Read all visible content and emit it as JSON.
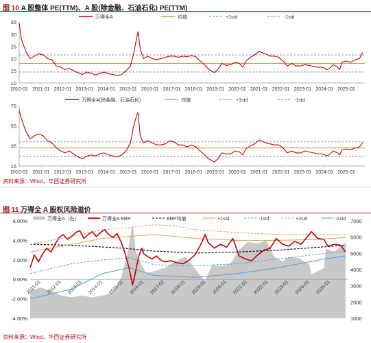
{
  "figure10": {
    "number": "图 10",
    "title": "A 股整体 PE(TTM)、A 股(除金融、石油石化) PE(TTM)"
  },
  "figure11": {
    "number": "图 11",
    "title": "万得全 A 股权风险溢价"
  },
  "source1": "资料来源：Wind，华西证券研究所",
  "source2": "资料来源：Wind，华西证券研究所",
  "colors": {
    "main": "#c00000",
    "mean": "#d4a25a",
    "std": "#7f7f7f",
    "area": "#c8c8c8",
    "dark": "#000000",
    "blue": "#5b9bd5",
    "accent": "#a4161a"
  },
  "chart_data": [
    {
      "type": "line",
      "title": "",
      "legend": [
        "万得全A",
        "均值",
        "+1std",
        "-1std"
      ],
      "x_ticks": [
        "2010-01",
        "2011-01",
        "2012-01",
        "2013-01",
        "2014-01",
        "2015-01",
        "2016-01",
        "2017-01",
        "2018-01",
        "2019-01",
        "2020-01",
        "2021-01",
        "2022-01",
        "2023-01",
        "2024-01",
        "2025-01"
      ],
      "ylim": [
        10,
        35
      ],
      "y_ticks": [
        10,
        15,
        20,
        25,
        30,
        35
      ],
      "mean": 18.0,
      "plus1std": 21.5,
      "minus1std": 14.5,
      "series": [
        {
          "name": "万得全A",
          "x": [
            2010.0,
            2010.1,
            2010.3,
            2010.5,
            2010.7,
            2010.9,
            2011.1,
            2011.3,
            2011.5,
            2011.7,
            2011.9,
            2012.1,
            2012.3,
            2012.5,
            2012.7,
            2012.9,
            2013.1,
            2013.3,
            2013.5,
            2013.7,
            2013.9,
            2014.1,
            2014.3,
            2014.5,
            2014.7,
            2014.9,
            2015.1,
            2015.25,
            2015.4,
            2015.45,
            2015.55,
            2015.7,
            2015.9,
            2016.1,
            2016.3,
            2016.5,
            2016.7,
            2016.9,
            2017.1,
            2017.3,
            2017.5,
            2017.7,
            2017.9,
            2018.1,
            2018.3,
            2018.5,
            2018.7,
            2018.95,
            2019.1,
            2019.3,
            2019.5,
            2019.7,
            2019.9,
            2020.1,
            2020.25,
            2020.4,
            2020.6,
            2020.8,
            2021.0,
            2021.1,
            2021.3,
            2021.5,
            2021.7,
            2021.9,
            2022.1,
            2022.3,
            2022.5,
            2022.7,
            2022.9,
            2023.1,
            2023.3,
            2023.5,
            2023.7,
            2023.9,
            2024.1,
            2024.2,
            2024.4,
            2024.6,
            2024.7,
            2024.8,
            2025.0,
            2025.2,
            2025.4,
            2025.6,
            2025.75
          ],
          "values": [
            34.5,
            28,
            23,
            20,
            21,
            22,
            21.5,
            20,
            19.5,
            17,
            16.5,
            15.5,
            16,
            15,
            14.2,
            13.5,
            14.5,
            14,
            13.3,
            14,
            14.5,
            13.8,
            13.5,
            13,
            13.5,
            15,
            17,
            22,
            29,
            31,
            24,
            20,
            21,
            20,
            19.5,
            20,
            20.5,
            21,
            21,
            20.5,
            21,
            20.8,
            21.2,
            20.8,
            19,
            17.5,
            15.5,
            14.3,
            15.5,
            18,
            17.2,
            17.5,
            18.5,
            18,
            16.5,
            19,
            20.5,
            21.5,
            23,
            22.5,
            22,
            21,
            21,
            20.5,
            19,
            17,
            18,
            17,
            17,
            17.5,
            17.2,
            16.8,
            16.5,
            16.5,
            15.5,
            15.8,
            17.5,
            16.5,
            15.5,
            18.5,
            19,
            18.5,
            19.5,
            20,
            22.5
          ]
        }
      ]
    },
    {
      "type": "line",
      "title": "",
      "legend": [
        "万得全A(除金融、石油石化)",
        "均值",
        "+1std",
        "-1std"
      ],
      "x_ticks": [
        "2010-01",
        "2011-01",
        "2012-01",
        "2013-01",
        "2014-01",
        "2015-01",
        "2016-01",
        "2017-01",
        "2018-01",
        "2019-01",
        "2020-01",
        "2021-01",
        "2022-01",
        "2023-01",
        "2024-01",
        "2025-01"
      ],
      "ylim": [
        15,
        75
      ],
      "y_ticks": [
        15,
        35,
        55,
        75
      ],
      "mean": 33.0,
      "plus1std": 39.0,
      "minus1std": 24.5,
      "series": [
        {
          "name": "万得全A(除金融、石油石化)",
          "x": [
            2010.0,
            2010.1,
            2010.3,
            2010.5,
            2010.7,
            2010.9,
            2011.1,
            2011.3,
            2011.5,
            2011.7,
            2011.9,
            2012.1,
            2012.3,
            2012.5,
            2012.7,
            2012.9,
            2013.1,
            2013.3,
            2013.5,
            2013.7,
            2013.9,
            2014.1,
            2014.3,
            2014.5,
            2014.7,
            2014.9,
            2015.1,
            2015.25,
            2015.4,
            2015.45,
            2015.55,
            2015.7,
            2015.9,
            2016.1,
            2016.3,
            2016.5,
            2016.7,
            2016.9,
            2017.1,
            2017.3,
            2017.5,
            2017.7,
            2017.9,
            2018.1,
            2018.3,
            2018.5,
            2018.7,
            2018.95,
            2019.1,
            2019.3,
            2019.5,
            2019.7,
            2019.9,
            2020.1,
            2020.25,
            2020.4,
            2020.6,
            2020.8,
            2021.0,
            2021.1,
            2021.3,
            2021.5,
            2021.7,
            2021.9,
            2022.1,
            2022.3,
            2022.5,
            2022.7,
            2022.9,
            2023.1,
            2023.3,
            2023.5,
            2023.7,
            2023.9,
            2024.1,
            2024.2,
            2024.4,
            2024.6,
            2024.7,
            2024.8,
            2025.0,
            2025.2,
            2025.4,
            2025.6,
            2025.75
          ],
          "values": [
            70,
            62,
            50,
            42,
            45,
            47,
            45,
            40,
            38,
            33,
            30,
            28,
            30,
            27,
            24,
            22,
            25,
            26,
            25,
            27,
            28,
            26,
            25,
            24,
            26,
            30,
            38,
            55,
            66,
            68,
            45,
            38,
            40,
            38,
            36,
            36,
            37,
            40,
            39,
            36,
            36,
            34,
            36,
            34,
            30,
            26,
            22,
            19,
            22,
            28,
            27,
            27,
            30,
            29,
            26,
            32,
            35,
            37,
            41,
            40,
            38,
            37,
            36,
            36,
            33,
            28,
            30,
            28,
            28,
            30,
            29,
            28,
            27,
            27,
            25,
            26,
            30,
            28,
            26,
            31,
            32,
            31,
            33,
            34,
            38
          ]
        }
      ]
    },
    {
      "type": "line",
      "title": "",
      "legend": [
        "万得全A（右）",
        "万得全A ERP",
        "ERP均值",
        "+1std",
        "-1std",
        "+2std",
        "-2std"
      ],
      "x_ticks": [
        "2011-01",
        "2012-01",
        "2013-01",
        "2014-01",
        "2015-01",
        "2016-01",
        "2017-01",
        "2018-01",
        "2019-01",
        "2020-01",
        "2021-01",
        "2022-01",
        "2023-01",
        "2024-01",
        "2025-01"
      ],
      "y_left": {
        "ylim": [
          -4,
          6
        ],
        "ticks": [
          "-4.00%",
          "-2.00%",
          "0.00%",
          "2.00%",
          "4.00%",
          "6.00%"
        ]
      },
      "y_right": {
        "ylim": [
          1000,
          7000
        ],
        "ticks": [
          "1000",
          "2000",
          "3000",
          "4000",
          "5000",
          "6000",
          "7000"
        ]
      },
      "series": [
        {
          "name": "万得全A（右）",
          "axis": "right",
          "x": [
            2010.5,
            2011.0,
            2011.5,
            2012.0,
            2012.5,
            2013.0,
            2013.5,
            2014.0,
            2014.5,
            2014.9,
            2015.2,
            2015.45,
            2015.6,
            2015.8,
            2016.1,
            2016.5,
            2017.0,
            2017.5,
            2018.0,
            2018.5,
            2018.95,
            2019.3,
            2019.8,
            2020.2,
            2020.6,
            2021.0,
            2021.5,
            2021.9,
            2022.3,
            2022.7,
            2023.0,
            2023.5,
            2024.0,
            2024.1,
            2024.7,
            2024.8,
            2025.2,
            2025.75
          ],
          "values": [
            2700,
            2900,
            2700,
            2400,
            2300,
            2400,
            2300,
            2400,
            2600,
            3500,
            5000,
            6800,
            5200,
            4500,
            3800,
            3900,
            4100,
            4500,
            4800,
            4000,
            3300,
            4300,
            4200,
            4400,
            5200,
            5700,
            5600,
            5800,
            4800,
            4500,
            4800,
            4700,
            4300,
            3700,
            4100,
            5300,
            5100,
            5700
          ]
        },
        {
          "name": "万得全A ERP",
          "axis": "left",
          "x": [
            2010.5,
            2010.7,
            2010.9,
            2011.1,
            2011.3,
            2011.5,
            2011.7,
            2011.9,
            2012.1,
            2012.3,
            2012.5,
            2012.7,
            2012.9,
            2013.1,
            2013.3,
            2013.5,
            2013.7,
            2013.9,
            2014.1,
            2014.3,
            2014.5,
            2014.7,
            2014.9,
            2015.1,
            2015.3,
            2015.45,
            2015.6,
            2015.75,
            2015.9,
            2016.0,
            2016.2,
            2016.4,
            2016.6,
            2016.8,
            2017.0,
            2017.3,
            2017.6,
            2017.9,
            2018.2,
            2018.5,
            2018.8,
            2018.95,
            2019.1,
            2019.4,
            2019.7,
            2020.0,
            2020.3,
            2020.6,
            2020.9,
            2021.2,
            2021.5,
            2021.8,
            2022.1,
            2022.4,
            2022.7,
            2023.0,
            2023.3,
            2023.6,
            2023.9,
            2024.1,
            2024.4,
            2024.7,
            2024.9,
            2025.2,
            2025.5,
            2025.75
          ],
          "values": [
            1.2,
            2.5,
            1.8,
            2.6,
            3.2,
            2.8,
            3.6,
            4.3,
            4.6,
            4.1,
            4.4,
            4.8,
            5.0,
            4.2,
            4.6,
            4.9,
            4.4,
            4.8,
            5.1,
            4.6,
            4.3,
            4.7,
            3.8,
            2.6,
            1.0,
            -0.6,
            0.8,
            2.4,
            3.2,
            2.6,
            2.3,
            2.1,
            2.4,
            2.0,
            1.8,
            1.9,
            1.7,
            1.6,
            2.0,
            2.6,
            3.8,
            4.6,
            3.8,
            3.2,
            3.6,
            3.3,
            4.2,
            2.4,
            2.1,
            1.9,
            2.5,
            3.0,
            3.2,
            4.2,
            3.6,
            3.4,
            3.9,
            3.6,
            4.4,
            4.9,
            4.2,
            4.1,
            3.4,
            3.6,
            3.5,
            2.8
          ]
        },
        {
          "name": "ERP均值",
          "axis": "left",
          "x": [
            2010.5,
            2012.5,
            2015.0,
            2016.5,
            2018.5,
            2020.5,
            2022.5,
            2024.5,
            2025.75
          ],
          "values": [
            3.6,
            3.5,
            3.2,
            2.9,
            2.7,
            2.8,
            3.0,
            3.3,
            3.5
          ]
        },
        {
          "name": "+1std",
          "axis": "left",
          "x": [
            2010.5,
            2012.5,
            2014.0,
            2015.3,
            2016.5,
            2018.5,
            2020.5,
            2022.5,
            2024.5,
            2025.75
          ],
          "values": [
            2.8,
            3.6,
            4.2,
            4.4,
            4.6,
            4.2,
            4.0,
            4.0,
            4.1,
            4.3
          ]
        },
        {
          "name": "-1std",
          "axis": "left",
          "x": [
            2010.5,
            2012.5,
            2014.0,
            2015.3,
            2016.5,
            2018.5,
            2020.5,
            2022.5,
            2024.5,
            2025.75
          ],
          "values": [
            0.6,
            1.6,
            2.0,
            2.2,
            1.5,
            1.4,
            1.6,
            2.1,
            2.6,
            2.9
          ]
        },
        {
          "name": "+2std",
          "axis": "left",
          "x": [
            2010.5,
            2012.5,
            2014.0,
            2015.3,
            2016.5,
            2017.5,
            2018.5,
            2020.5,
            2022.5,
            2024.5,
            2025.75
          ],
          "values": [
            3.6,
            4.4,
            5.1,
            5.3,
            5.6,
            5.5,
            5.1,
            4.8,
            4.6,
            4.6,
            4.6
          ]
        },
        {
          "name": "-2std",
          "axis": "left",
          "x": [
            2010.5,
            2012.5,
            2014.0,
            2015.3,
            2016.5,
            2018.5,
            2020.5,
            2022.5,
            2024.5,
            2025.75
          ],
          "values": [
            -2.0,
            -1.0,
            0.6,
            1.2,
            0.4,
            0.2,
            0.6,
            1.2,
            2.0,
            2.4
          ]
        }
      ]
    }
  ]
}
